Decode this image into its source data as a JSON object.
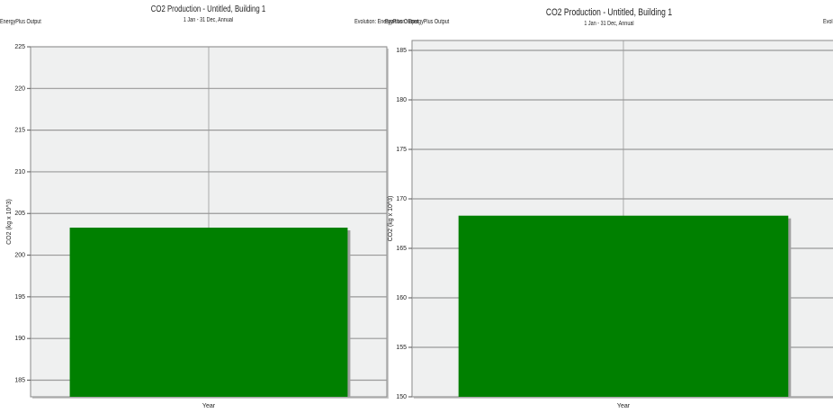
{
  "chart_data": [
    {
      "type": "bar",
      "title": "CO2 Production - Untitled, Building 1",
      "subtitle": "1 Jan - 31 Dec, Annual",
      "source_left": "EnergyPlus Output",
      "source_right": "Evolution: EnergyPlus Output",
      "ylabel": "CO2 (kg x 10^3)",
      "categories": [
        "Year"
      ],
      "series": [
        {
          "values": [
            203.3
          ]
        }
      ],
      "ylim": [
        183,
        225
      ],
      "yticks": [
        185,
        190,
        195,
        200,
        205,
        210,
        215,
        220,
        225
      ],
      "ytick_labels": [
        "185",
        "190",
        "195",
        "200",
        "205",
        "210",
        "215",
        "220",
        "225"
      ],
      "grid": true,
      "colors": {
        "bar": "#008000",
        "bar_shadow": "#a0a0a0",
        "plot_bg": "#eff0f0",
        "grid": "#999999"
      }
    },
    {
      "type": "bar",
      "title": "CO2 Production - Untitled, Building 1",
      "subtitle": "1 Jan - 31 Dec, Annual",
      "source_left": "Evolution: EnergyPlus Output",
      "source_right": "Evol",
      "ylabel": "CO2 (kg x 10^3)",
      "categories": [
        "Year"
      ],
      "series": [
        {
          "values": [
            168.3
          ]
        }
      ],
      "ylim": [
        150,
        186
      ],
      "yticks": [
        150,
        155,
        160,
        165,
        170,
        175,
        180,
        185
      ],
      "ytick_labels": [
        "150",
        "155",
        "160",
        "165",
        "170",
        "175",
        "180",
        "185"
      ],
      "grid": true,
      "colors": {
        "bar": "#008000",
        "bar_shadow": "#a0a0a0",
        "plot_bg": "#eff0f0",
        "grid": "#999999"
      }
    }
  ]
}
